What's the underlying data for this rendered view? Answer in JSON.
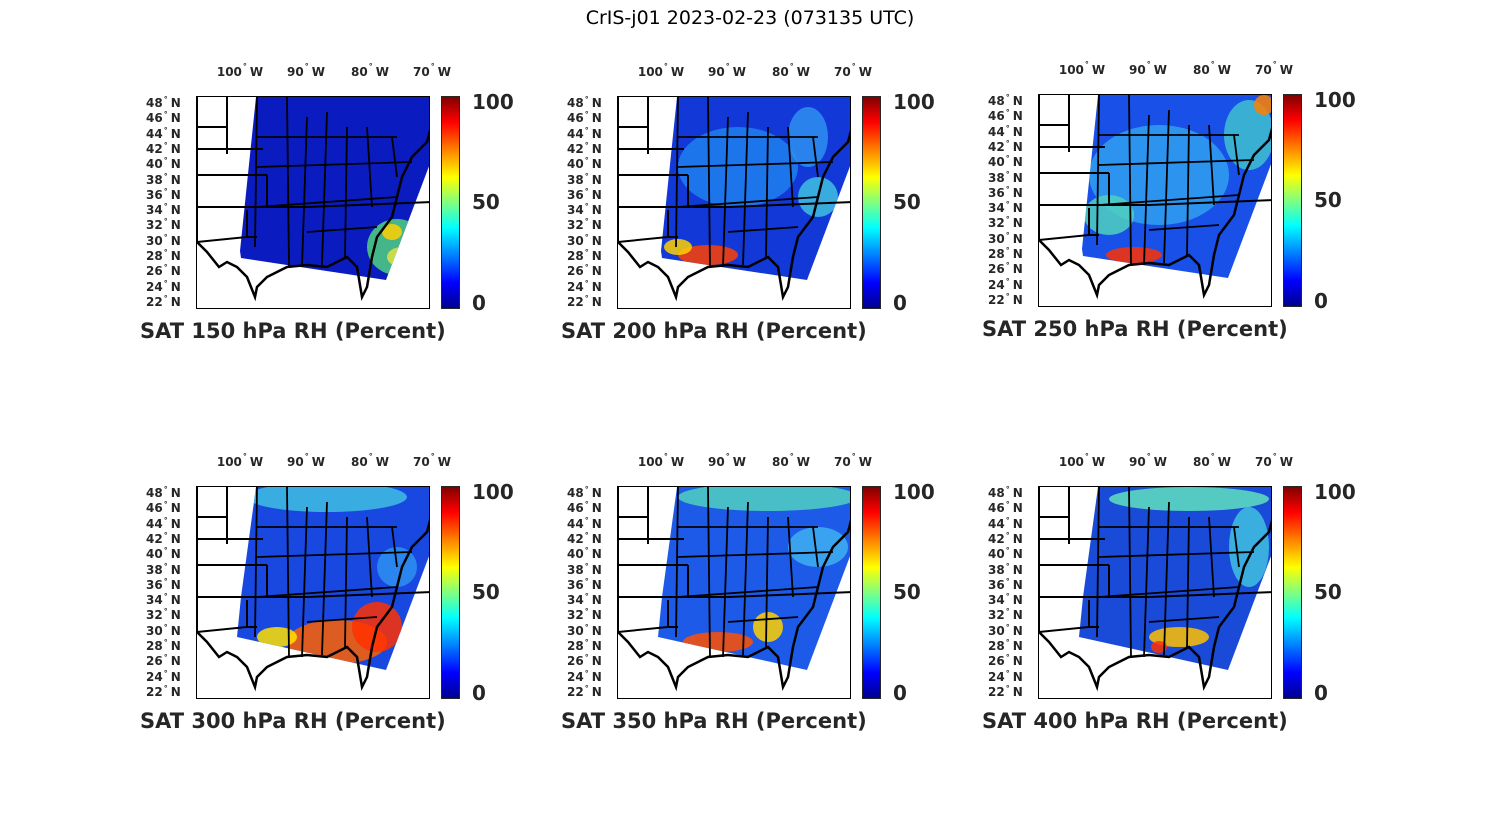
{
  "figure_title": "CrIS-j01 2023-02-23 (073135 UTC)",
  "lon_ticks": [
    "100",
    "90",
    "80",
    "70"
  ],
  "lon_suffix": "W",
  "lat_ticks": [
    "48",
    "46",
    "44",
    "42",
    "40",
    "38",
    "36",
    "34",
    "32",
    "30",
    "28",
    "26",
    "24",
    "22"
  ],
  "lat_suffix": "N",
  "degree_symbol": "°",
  "colorbar_ticks": [
    "100",
    "50",
    "0"
  ],
  "colorbar_range": [
    0,
    100
  ],
  "colormap": "jet",
  "panels": [
    {
      "title": "SAT 150 hPa RH (Percent)"
    },
    {
      "title": "SAT 200 hPa RH (Percent)"
    },
    {
      "title": "SAT 250 hPa RH (Percent)"
    },
    {
      "title": "SAT 300 hPa RH (Percent)"
    },
    {
      "title": "SAT 350 hPa RH (Percent)"
    },
    {
      "title": "SAT 400 hPa RH (Percent)"
    }
  ]
}
